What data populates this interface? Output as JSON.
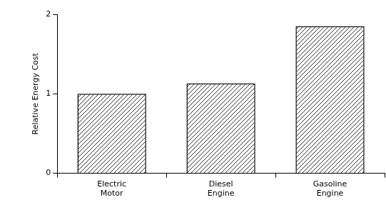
{
  "chart_data": {
    "type": "bar",
    "y_label": "Relative Energy Cost",
    "categories": [
      "Electric\nMotor",
      "Diesel\nEngine",
      "Gasoline\nEngine"
    ],
    "values": [
      1.0,
      1.13,
      1.85
    ],
    "color": "#000000",
    "ylim": [
      0,
      2
    ],
    "yticks": [
      0,
      1,
      2
    ],
    "grid": false
  }
}
